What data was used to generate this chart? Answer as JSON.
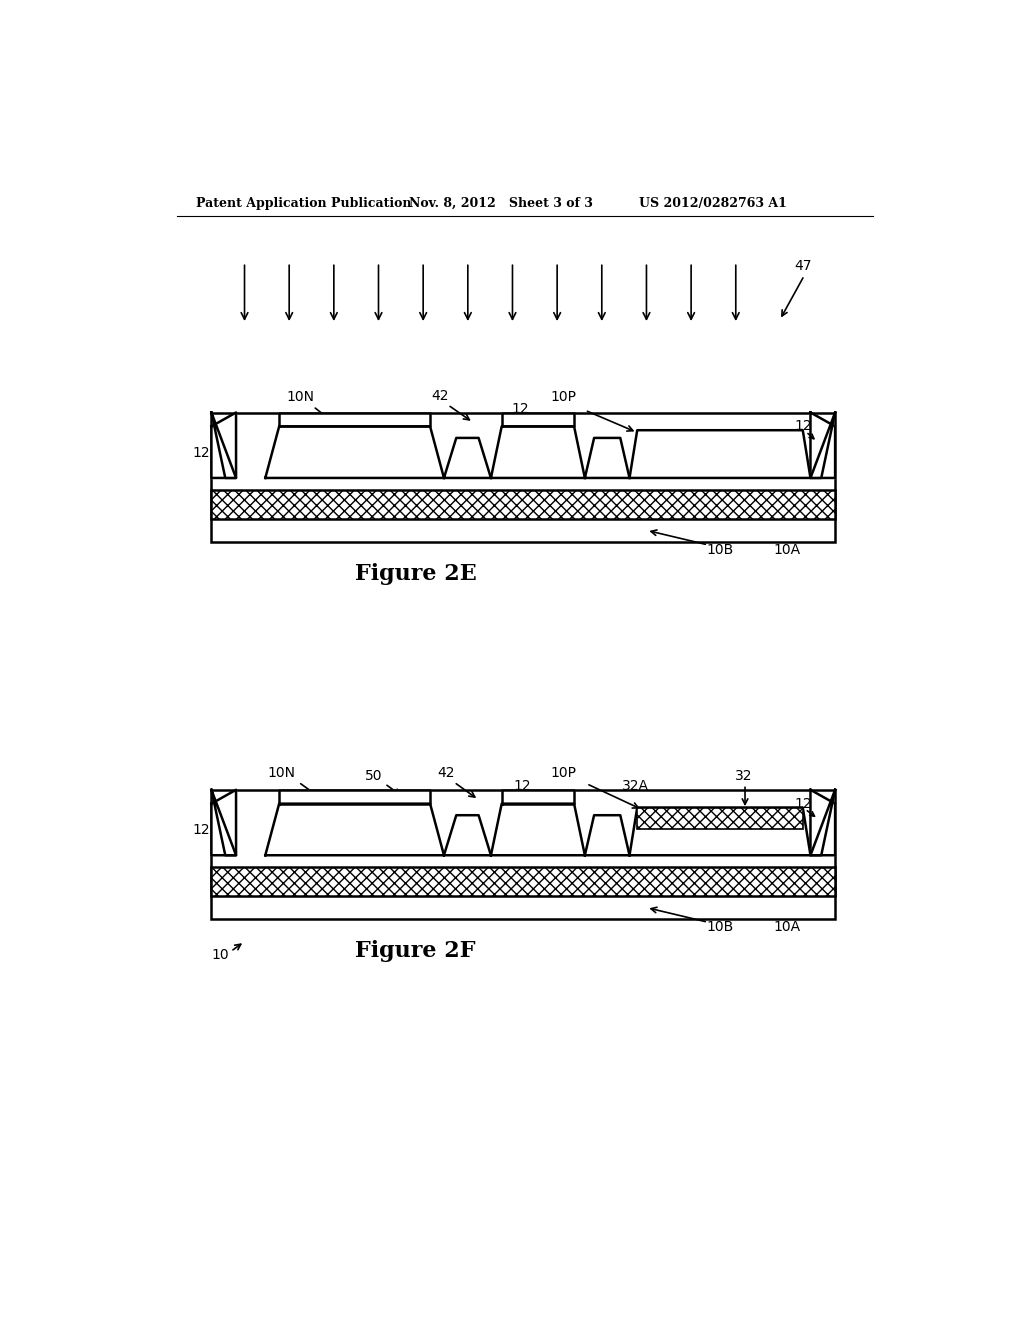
{
  "header_left": "Patent Application Publication",
  "header_mid": "Nov. 8, 2012   Sheet 3 of 3",
  "header_right": "US 2012/0282763 A1",
  "bg_color": "#ffffff",
  "line_color": "#000000",
  "fig2e_label": "Figure 2E",
  "fig2f_label": "Figure 2F"
}
